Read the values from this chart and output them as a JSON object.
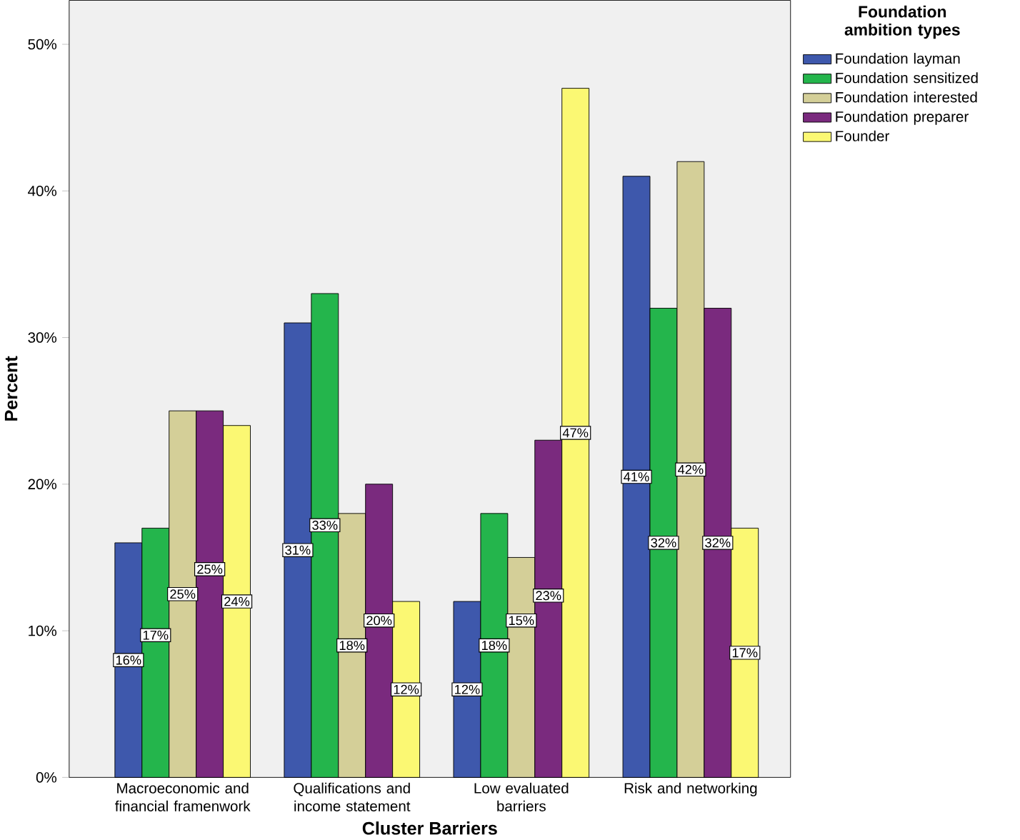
{
  "chart_data": {
    "type": "bar",
    "xlabel": "Cluster Barriers",
    "ylabel": "Percent",
    "legend_title": "Foundation ambition types",
    "categories": [
      "Macroeconomic and financial framenwork",
      "Qualifications and income statement",
      "Low evaluated barriers",
      "Risk and networking"
    ],
    "series": [
      {
        "name": "Foundation layman",
        "color": "#3e58ac",
        "values": [
          16,
          31,
          12,
          41
        ],
        "value_labels": [
          "16%",
          "31%",
          "12%",
          "41%"
        ]
      },
      {
        "name": "Foundation sensitized",
        "color": "#24b54c",
        "values": [
          17,
          33,
          18,
          32
        ],
        "value_labels": [
          "17%",
          "33%",
          "18%",
          "32%"
        ]
      },
      {
        "name": "Foundation interested",
        "color": "#d4cf98",
        "values": [
          25,
          18,
          15,
          42
        ],
        "value_labels": [
          "25%",
          "18%",
          "15%",
          "42%"
        ]
      },
      {
        "name": "Foundation preparer",
        "color": "#7a2a7e",
        "values": [
          25,
          20,
          23,
          32
        ],
        "value_labels": [
          "25%",
          "20%",
          "23%",
          "32%"
        ]
      },
      {
        "name": "Founder",
        "color": "#fbf873",
        "values": [
          24,
          12,
          47,
          17
        ],
        "value_labels": [
          "24%",
          "12%",
          "47%",
          "17%"
        ]
      }
    ],
    "ylim": [
      0,
      53
    ],
    "yticks": [
      {
        "value": 0,
        "label": "0%"
      },
      {
        "value": 10,
        "label": "10%"
      },
      {
        "value": 20,
        "label": "20%"
      },
      {
        "value": 30,
        "label": "30%"
      },
      {
        "value": 40,
        "label": "40%"
      },
      {
        "value": 50,
        "label": "50%"
      }
    ],
    "legend": "top right"
  }
}
